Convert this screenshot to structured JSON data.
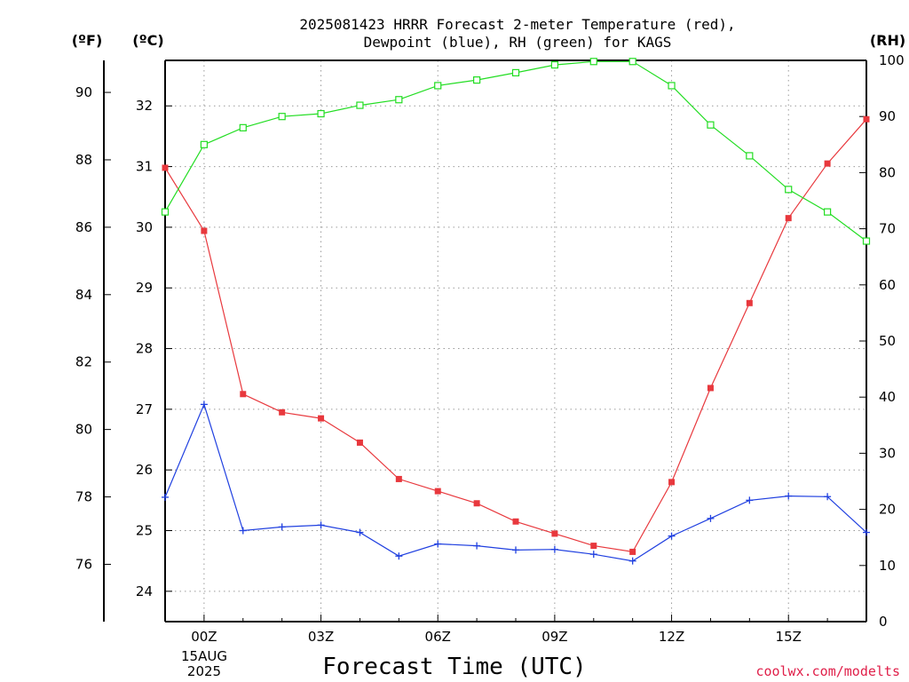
{
  "header": {
    "title_line1": "2025081423 HRRR Forecast 2-meter Temperature (red),",
    "title_line2": "Dewpoint (blue), RH (green) for KAGS",
    "unit_f": "(ºF)",
    "unit_c": "(ºC)",
    "unit_rh": "(RH)"
  },
  "footer": {
    "xlabel": "Forecast Time (UTC)",
    "date_line1": "15AUG",
    "date_line2": "2025",
    "credit": "coolwx.com/modelts"
  },
  "chart_data": {
    "type": "line",
    "title": "2025081423 HRRR Forecast 2-meter Temperature (red), Dewpoint (blue), RH (green) for KAGS",
    "xlabel": "Forecast Time (UTC)",
    "x_hours": [
      -1,
      0,
      1,
      2,
      3,
      4,
      5,
      6,
      7,
      8,
      9,
      10,
      11,
      12,
      13,
      14,
      15,
      16,
      17
    ],
    "xlim": [
      -1,
      17
    ],
    "x_ticks": [
      {
        "hour": 0,
        "label": "00Z"
      },
      {
        "hour": 3,
        "label": "03Z"
      },
      {
        "hour": 6,
        "label": "06Z"
      },
      {
        "hour": 9,
        "label": "09Z"
      },
      {
        "hour": 12,
        "label": "12Z"
      },
      {
        "hour": 15,
        "label": "15Z"
      }
    ],
    "y_celsius": {
      "label": "(ºC)",
      "lim": [
        23.5,
        32.75
      ],
      "ticks": [
        24,
        25,
        26,
        27,
        28,
        29,
        30,
        31,
        32
      ]
    },
    "y_fahrenheit": {
      "label": "(ºF)",
      "ticks": [
        76,
        78,
        80,
        82,
        84,
        86,
        88,
        90
      ]
    },
    "y_rh": {
      "label": "(RH)",
      "lim": [
        0,
        100
      ],
      "ticks": [
        0,
        10,
        20,
        30,
        40,
        50,
        60,
        70,
        80,
        90,
        100
      ]
    },
    "grid": true,
    "series": [
      {
        "name": "Temperature (red)",
        "axis": "celsius",
        "color": "#e8383d",
        "marker": "filled-square",
        "values": [
          30.98,
          29.94,
          27.25,
          26.95,
          26.85,
          26.45,
          25.85,
          25.65,
          25.45,
          25.15,
          24.95,
          24.75,
          24.65,
          25.8,
          27.35,
          28.75,
          30.15,
          31.05,
          31.78
        ]
      },
      {
        "name": "Dewpoint (blue)",
        "axis": "celsius",
        "color": "#2040e0",
        "marker": "plus",
        "values": [
          25.55,
          27.08,
          25.0,
          25.06,
          25.09,
          24.97,
          24.58,
          24.78,
          24.75,
          24.68,
          24.69,
          24.61,
          24.5,
          24.91,
          25.2,
          25.5,
          25.57,
          25.56,
          24.97
        ]
      },
      {
        "name": "RH (green)",
        "axis": "rh",
        "color": "#22dd22",
        "marker": "open-square",
        "values": [
          73,
          85,
          88,
          90,
          90.5,
          92,
          93,
          95.5,
          96.5,
          97.8,
          99.2,
          99.8,
          99.8,
          95.5,
          88.5,
          83,
          77,
          73,
          67.8
        ]
      }
    ]
  }
}
